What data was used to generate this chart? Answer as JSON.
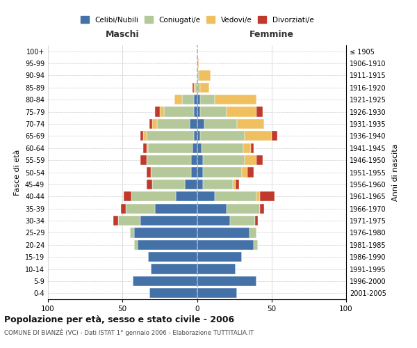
{
  "age_groups": [
    "0-4",
    "5-9",
    "10-14",
    "15-19",
    "20-24",
    "25-29",
    "30-34",
    "35-39",
    "40-44",
    "45-49",
    "50-54",
    "55-59",
    "60-64",
    "65-69",
    "70-74",
    "75-79",
    "80-84",
    "85-89",
    "90-94",
    "95-99",
    "100+"
  ],
  "birth_years": [
    "2001-2005",
    "1996-2000",
    "1991-1995",
    "1986-1990",
    "1981-1985",
    "1976-1980",
    "1971-1975",
    "1966-1970",
    "1961-1965",
    "1956-1960",
    "1951-1955",
    "1946-1950",
    "1941-1945",
    "1936-1940",
    "1931-1935",
    "1926-1930",
    "1921-1925",
    "1916-1920",
    "1911-1915",
    "1906-1910",
    "≤ 1905"
  ],
  "maschi": {
    "celibi": [
      32,
      43,
      31,
      33,
      40,
      42,
      38,
      28,
      14,
      8,
      4,
      4,
      3,
      2,
      5,
      2,
      2,
      0,
      0,
      0,
      0
    ],
    "coniugati": [
      0,
      0,
      0,
      0,
      2,
      3,
      15,
      20,
      30,
      22,
      27,
      30,
      30,
      32,
      22,
      20,
      8,
      1,
      0,
      0,
      0
    ],
    "vedovi": [
      0,
      0,
      0,
      0,
      0,
      0,
      0,
      0,
      0,
      0,
      0,
      0,
      1,
      2,
      3,
      3,
      5,
      1,
      0,
      0,
      0
    ],
    "divorziati": [
      0,
      0,
      0,
      0,
      0,
      0,
      3,
      3,
      5,
      4,
      3,
      4,
      2,
      2,
      2,
      3,
      0,
      1,
      0,
      0,
      0
    ]
  },
  "femmine": {
    "nubili": [
      27,
      40,
      26,
      30,
      38,
      35,
      22,
      20,
      12,
      4,
      4,
      4,
      3,
      2,
      5,
      2,
      2,
      0,
      0,
      0,
      0
    ],
    "coniugate": [
      0,
      0,
      0,
      0,
      3,
      5,
      17,
      22,
      28,
      20,
      26,
      28,
      28,
      30,
      22,
      18,
      10,
      2,
      1,
      0,
      0
    ],
    "vedove": [
      0,
      0,
      0,
      0,
      0,
      0,
      0,
      0,
      2,
      2,
      4,
      8,
      5,
      18,
      18,
      20,
      28,
      6,
      8,
      1,
      0
    ],
    "divorziate": [
      0,
      0,
      0,
      0,
      0,
      0,
      2,
      3,
      10,
      2,
      4,
      4,
      2,
      4,
      0,
      4,
      0,
      0,
      0,
      0,
      0
    ]
  },
  "colors": {
    "celibi": "#4472a8",
    "coniugati": "#b5c89a",
    "vedovi": "#f0c060",
    "divorziati": "#c0392b"
  },
  "xlim": [
    -100,
    100
  ],
  "xlabel_left": "Maschi",
  "xlabel_right": "Femmine",
  "ylabel_left": "Fasce di età",
  "ylabel_right": "Anni di nascita",
  "title": "Popolazione per età, sesso e stato civile - 2006",
  "subtitle": "COMUNE DI BIANZÈ (VC) - Dati ISTAT 1° gennaio 2006 - Elaborazione TUTTITALIA.IT",
  "legend_labels": [
    "Celibi/Nubili",
    "Coniugati/e",
    "Vedovi/e",
    "Divorziati/e"
  ],
  "bar_background": "#ffffff"
}
